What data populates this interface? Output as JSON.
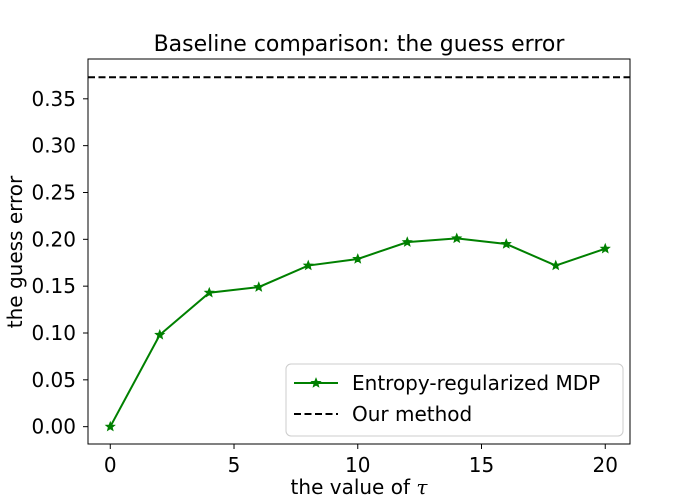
{
  "chart_data": {
    "type": "line",
    "title": "Baseline comparison: the guess error",
    "xlabel_prefix": "the value of ",
    "xlabel_symbol": "τ",
    "ylabel": "the guess error",
    "xlim": [
      -0.9,
      21.0
    ],
    "ylim": [
      -0.0185,
      0.3925
    ],
    "x_ticks": [
      0,
      5,
      10,
      15,
      20
    ],
    "x_tick_labels": [
      "0",
      "5",
      "10",
      "15",
      "20"
    ],
    "y_ticks": [
      0.0,
      0.05,
      0.1,
      0.15,
      0.2,
      0.25,
      0.3,
      0.35
    ],
    "y_tick_labels": [
      "0.00",
      "0.05",
      "0.10",
      "0.15",
      "0.20",
      "0.25",
      "0.30",
      "0.35"
    ],
    "grid": false,
    "legend_position": "lower-right",
    "series": [
      {
        "name": "Entropy-regularized MDP",
        "color": "#008000",
        "line_style": "solid",
        "marker": "star-icon",
        "x": [
          0,
          2,
          4,
          6,
          8,
          10,
          12,
          14,
          16,
          18,
          20
        ],
        "y": [
          0.0,
          0.098,
          0.143,
          0.149,
          0.172,
          0.179,
          0.197,
          0.201,
          0.195,
          0.172,
          0.19
        ]
      },
      {
        "name": "Our method",
        "color": "#000000",
        "line_style": "dashed",
        "y_constant": 0.373
      }
    ]
  }
}
